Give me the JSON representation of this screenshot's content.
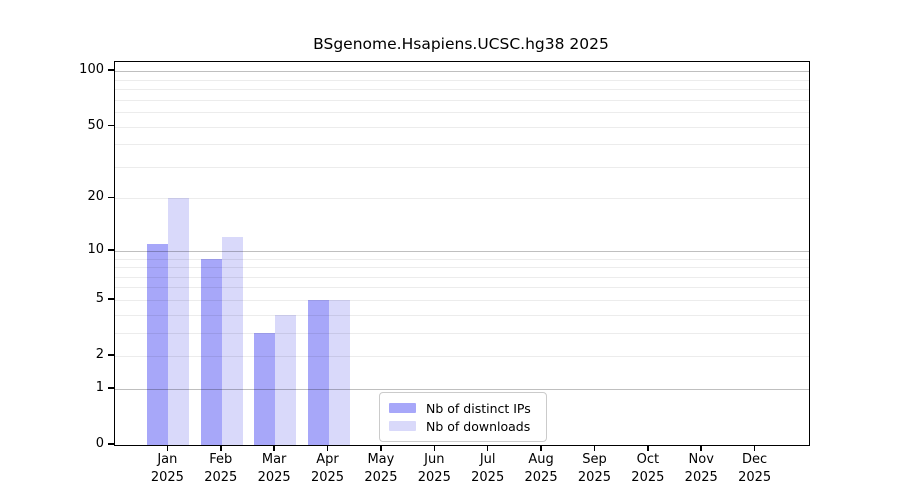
{
  "chart_data": {
    "type": "bar",
    "title": "BSgenome.Hsapiens.UCSC.hg38 2025",
    "year_label": "2025",
    "categories": [
      "Jan",
      "Feb",
      "Mar",
      "Apr",
      "May",
      "Jun",
      "Jul",
      "Aug",
      "Sep",
      "Oct",
      "Nov",
      "Dec"
    ],
    "series": [
      {
        "name": "Nb of distinct IPs",
        "color": "#a7a7f9",
        "values": [
          11,
          9,
          3,
          5,
          0,
          0,
          0,
          0,
          0,
          0,
          0,
          0
        ]
      },
      {
        "name": "Nb of downloads",
        "color": "#d9d9fa",
        "values": [
          20,
          12,
          4,
          5,
          0,
          0,
          0,
          0,
          0,
          0,
          0,
          0
        ]
      }
    ],
    "xlabel": "",
    "ylabel": "",
    "y_scale": "log10(1+x)",
    "y_major_ticks": [
      0,
      1,
      2,
      5,
      10,
      20,
      50,
      100
    ],
    "y_minor_gridlines": [
      3,
      4,
      6,
      7,
      8,
      9,
      30,
      40,
      60,
      70,
      80,
      90
    ],
    "ylim": [
      0,
      115
    ],
    "grid": true,
    "legend_position": "bottom-center",
    "legend_entries": [
      "Nb of distinct IPs",
      "Nb of downloads"
    ]
  },
  "colors": {
    "bar_distinct_ips": "#a7a7f9",
    "bar_downloads": "#d9d9fa",
    "axis_frame": "#000000",
    "gridline_decade": "#c0c0c0",
    "gridline_minor": "#ececec",
    "legend_border": "#cbcbcb",
    "background": "#ffffff",
    "text": "#000000"
  }
}
